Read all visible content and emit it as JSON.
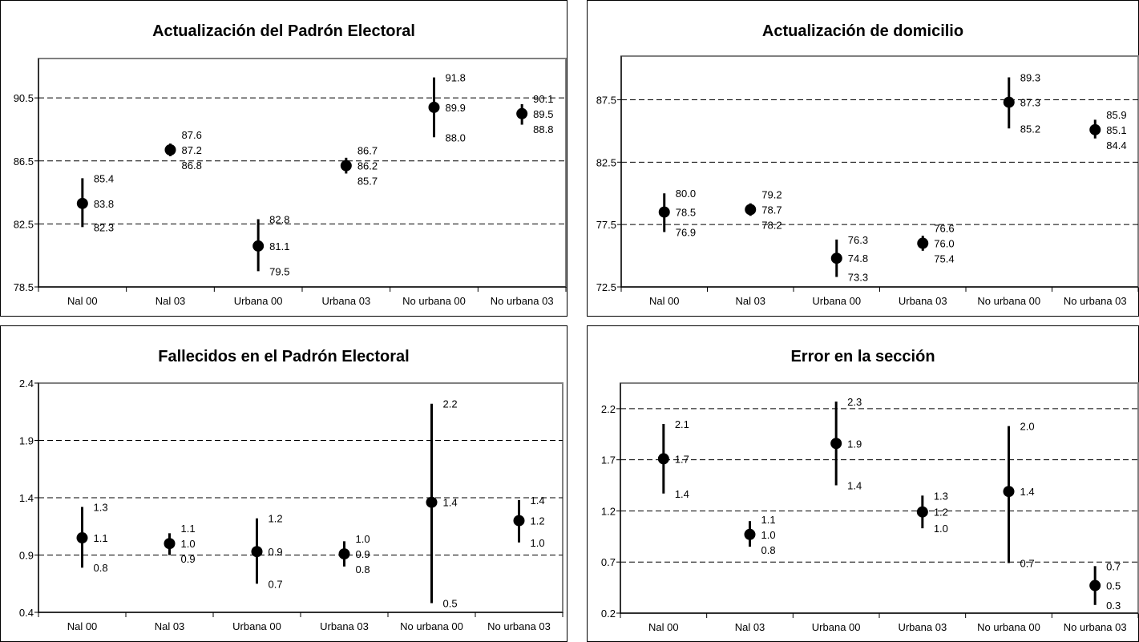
{
  "chart_data": [
    {
      "type": "scatter",
      "title": "Actualización del Padrón Electoral",
      "categories": [
        "Nal 00",
        "Nal 03",
        "Urbana 00",
        "Urbana 03",
        "No urbana 00",
        "No urbana 03"
      ],
      "y_ticks": [
        "78.5",
        "82.5",
        "86.5",
        "90.5"
      ],
      "ylim": [
        78.5,
        93.0
      ],
      "gridlines": [
        82.5,
        86.5,
        90.5
      ],
      "series": [
        {
          "values": [
            83.8,
            87.2,
            81.1,
            86.2,
            89.9,
            89.5
          ],
          "upper": [
            85.4,
            87.6,
            82.8,
            86.7,
            91.8,
            90.1
          ],
          "lower": [
            82.3,
            86.8,
            79.5,
            85.7,
            88.0,
            88.8
          ],
          "value_labels": [
            "83.8",
            "87.2",
            "81.1",
            "86.2",
            "89.9",
            "89.5"
          ],
          "upper_labels": [
            "85.4",
            "87.6",
            "82.8",
            "86.7",
            "91.8",
            "90.1"
          ],
          "lower_labels": [
            "82.3",
            "86.8",
            "79.5",
            "85.7",
            "88.0",
            "88.8"
          ]
        }
      ]
    },
    {
      "type": "scatter",
      "title": "Actualización de domicilio",
      "categories": [
        "Nal 00",
        "Nal 03",
        "Urbana 00",
        "Urbana 03",
        "No urbana 00",
        "No urbana 03"
      ],
      "y_ticks": [
        "72.5",
        "77.5",
        "82.5",
        "87.5"
      ],
      "ylim": [
        72.5,
        91.0
      ],
      "gridlines": [
        77.5,
        82.5,
        87.5
      ],
      "series": [
        {
          "values": [
            78.5,
            78.7,
            74.8,
            76.0,
            87.3,
            85.1
          ],
          "upper": [
            80.0,
            79.2,
            76.3,
            76.6,
            89.3,
            85.9
          ],
          "lower": [
            76.9,
            78.2,
            73.3,
            75.4,
            85.2,
            84.4
          ],
          "value_labels": [
            "78.5",
            "78.7",
            "74.8",
            "76.0",
            "87.3",
            "85.1"
          ],
          "upper_labels": [
            "80.0",
            "79.2",
            "76.3",
            "76.6",
            "89.3",
            "85.9"
          ],
          "lower_labels": [
            "76.9",
            "78.2",
            "73.3",
            "75.4",
            "85.2",
            "84.4"
          ]
        }
      ]
    },
    {
      "type": "scatter",
      "title": "Fallecidos en el Padrón Electoral",
      "categories": [
        "Nal 00",
        "Nal 03",
        "Urbana 00",
        "Urbana 03",
        "No urbana 00",
        "No urbana 03"
      ],
      "y_ticks": [
        "0.4",
        "0.9",
        "1.4",
        "1.9",
        "2.4"
      ],
      "ylim": [
        0.4,
        2.4
      ],
      "gridlines": [
        0.9,
        1.4,
        1.9
      ],
      "series": [
        {
          "values": [
            1.05,
            1.0,
            0.93,
            0.91,
            1.36,
            1.2
          ],
          "upper": [
            1.32,
            1.09,
            1.22,
            1.02,
            2.22,
            1.38
          ],
          "lower": [
            0.79,
            0.9,
            0.65,
            0.8,
            0.48,
            1.01
          ],
          "value_labels": [
            "1.1",
            "1.0",
            "0.9",
            "0.9",
            "1.4",
            "1.2"
          ],
          "upper_labels": [
            "1.3",
            "1.1",
            "1.2",
            "1.0",
            "2.2",
            "1.4"
          ],
          "lower_labels": [
            "0.8",
            "0.9",
            "0.7",
            "0.8",
            "0.5",
            "1.0"
          ]
        }
      ]
    },
    {
      "type": "scatter",
      "title": "Error en la sección",
      "categories": [
        "Nal 00",
        "Nal 03",
        "Urbana 00",
        "Urbana 03",
        "No urbana 00",
        "No urbana 03"
      ],
      "y_ticks": [
        "0.2",
        "0.7",
        "1.2",
        "1.7",
        "2.2"
      ],
      "ylim": [
        0.2,
        2.45
      ],
      "gridlines": [
        0.7,
        1.2,
        1.7,
        2.2
      ],
      "series": [
        {
          "values": [
            1.71,
            0.97,
            1.86,
            1.19,
            1.39,
            0.47
          ],
          "upper": [
            2.05,
            1.1,
            2.27,
            1.35,
            2.03,
            0.66
          ],
          "lower": [
            1.37,
            0.85,
            1.45,
            1.03,
            0.69,
            0.28
          ],
          "value_labels": [
            "1.7",
            "1.0",
            "1.9",
            "1.2",
            "1.4",
            "0.5"
          ],
          "upper_labels": [
            "2.1",
            "1.1",
            "2.3",
            "1.3",
            "2.0",
            "0.7"
          ],
          "lower_labels": [
            "1.4",
            "0.8",
            "1.4",
            "1.0",
            "0.7",
            "0.3"
          ]
        }
      ]
    }
  ]
}
